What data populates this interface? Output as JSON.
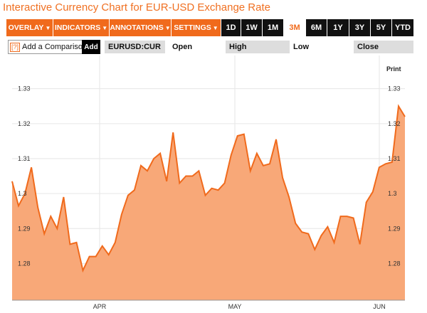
{
  "page": {
    "title": "Interactive Currency Chart for EUR-USD Exchange Rate"
  },
  "toolbar": {
    "menus": [
      {
        "label": "OVERLAY"
      },
      {
        "label": "INDICATORS"
      },
      {
        "label": "ANNOTATIONS"
      },
      {
        "label": "SETTINGS"
      }
    ],
    "ranges": [
      {
        "label": "1D"
      },
      {
        "label": "1W"
      },
      {
        "label": "1M"
      },
      {
        "label": "3M"
      },
      {
        "label": "6M"
      },
      {
        "label": "1Y"
      },
      {
        "label": "3Y"
      },
      {
        "label": "5Y"
      },
      {
        "label": "YTD"
      }
    ],
    "active_range": "3M",
    "menu_arrow": "▼"
  },
  "compare": {
    "qmark": "[?]",
    "label": "Add a Comparison",
    "add_label": "Add"
  },
  "quote": {
    "symbol": "EURUSD:CUR",
    "open_label": "Open",
    "high_label": "High",
    "low_label": "Low",
    "close_label": "Close"
  },
  "chart": {
    "print_label": "Print"
  },
  "colors": {
    "accent": "#f06a1c",
    "area_fill": "#f8a878",
    "line": "#f06a1c",
    "title": "#f07022"
  },
  "chart_data": {
    "type": "area",
    "series": [
      {
        "values": [
          1.3035,
          1.2965,
          1.3,
          1.3075,
          1.296,
          1.2885,
          1.2935,
          1.29,
          1.299,
          1.2855,
          1.286,
          1.278,
          1.282,
          1.282,
          1.285,
          1.2825,
          1.286,
          1.294,
          1.2995,
          1.301,
          1.308,
          1.3065,
          1.31,
          1.3115,
          1.3035,
          1.3175,
          1.303,
          1.305,
          1.305,
          1.3065,
          1.2995,
          1.3015,
          1.301,
          1.303,
          1.311,
          1.3165,
          1.317,
          1.3065,
          1.3115,
          1.308,
          1.3085,
          1.3155,
          1.3045,
          1.299,
          1.2915,
          1.289,
          1.2885,
          1.284,
          1.288,
          1.2905,
          1.286,
          1.2935,
          1.2935,
          1.293,
          1.2855,
          1.2975,
          1.3005,
          1.3075,
          1.3085,
          1.309,
          1.325,
          1.322
        ]
      }
    ],
    "y_ticks": [
      "1.28",
      "1.29",
      "1.3",
      "1.31",
      "1.32",
      "1.33"
    ],
    "x_labels": [
      "APR",
      "MAY",
      "JUN"
    ],
    "ylim": [
      1.2695,
      1.3395
    ],
    "grid": true
  }
}
